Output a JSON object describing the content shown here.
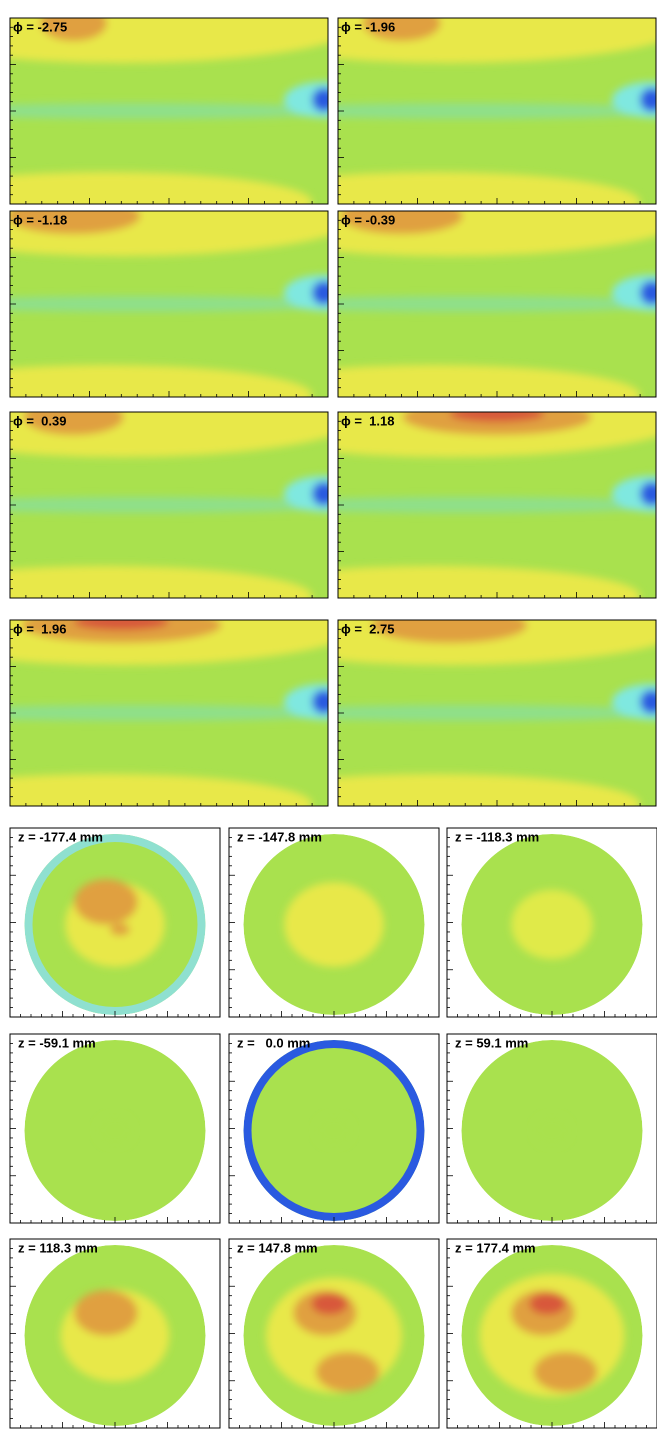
{
  "phi_panels": [
    {
      "label": "ϕ = -2.75"
    },
    {
      "label": "ϕ = -1.96"
    },
    {
      "label": "ϕ = -1.18"
    },
    {
      "label": "ϕ = -0.39"
    },
    {
      "label": "ϕ =  0.39"
    },
    {
      "label": "ϕ =  1.18"
    },
    {
      "label": "ϕ =  1.96"
    },
    {
      "label": "ϕ =  2.75"
    }
  ],
  "z_panels": [
    {
      "label": "z = -177.4 mm"
    },
    {
      "label": "z = -147.8 mm"
    },
    {
      "label": "z = -118.3 mm"
    },
    {
      "label": "z = -59.1 mm"
    },
    {
      "label": "z =   0.0 mm"
    },
    {
      "label": "z = 59.1 mm"
    },
    {
      "label": "z = 118.3 mm"
    },
    {
      "label": "z = 147.8 mm"
    },
    {
      "label": "z = 177.4 mm"
    }
  ]
}
